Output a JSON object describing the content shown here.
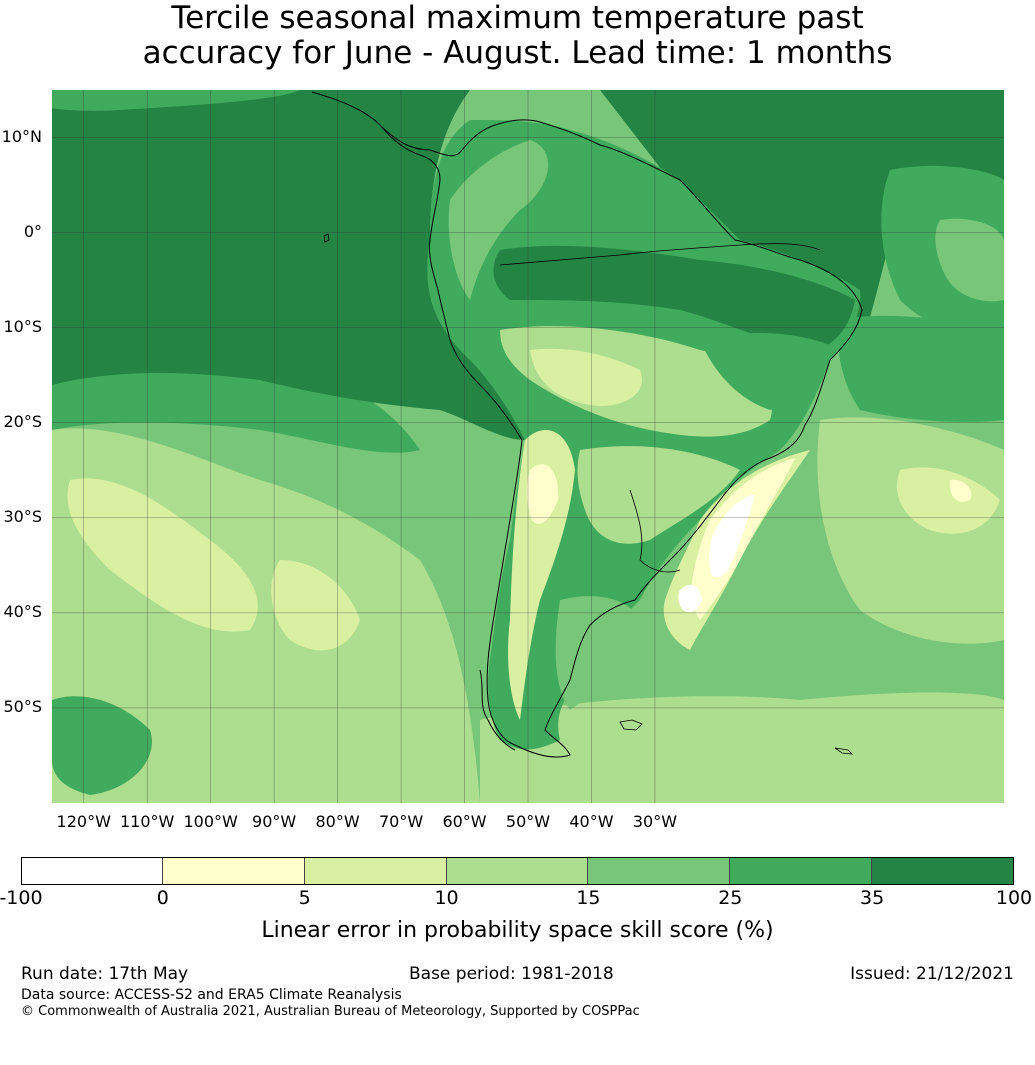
{
  "title": {
    "line1": "Tercile seasonal maximum temperature past",
    "line2": "accuracy for June - August. Lead time: 1 months"
  },
  "map": {
    "lon_range": [
      -125,
      25
    ],
    "lat_range": [
      -60,
      15
    ],
    "lat_labels": [
      "10°N",
      "0°",
      "10°S",
      "20°S",
      "30°S",
      "40°S",
      "50°S"
    ],
    "lat_values": [
      10,
      0,
      -10,
      -20,
      -30,
      -40,
      -50
    ],
    "lon_labels": [
      "120°W",
      "110°W",
      "100°W",
      "90°W",
      "80°W",
      "70°W",
      "60°W",
      "50°W",
      "40°W",
      "30°W"
    ],
    "lon_values": [
      -120,
      -110,
      -100,
      -90,
      -80,
      -70,
      -60,
      -50,
      -40,
      -30
    ],
    "colors": {
      "c0": "#ffffff",
      "c1": "#ffffcc",
      "c2": "#d9f0a3",
      "c3": "#addd8e",
      "c4": "#78c679",
      "c5": "#41ab5d",
      "c6": "#238443"
    }
  },
  "colorbar": {
    "bounds": [
      -100,
      0,
      5,
      10,
      15,
      25,
      35,
      100
    ],
    "tick_labels": [
      "-100",
      "0",
      "5",
      "10",
      "15",
      "25",
      "35",
      "100"
    ],
    "label": "Linear error in probability space skill score (%)"
  },
  "footer": {
    "run_date": "Run date: 17th May",
    "base_period": "Base period: 1981-2018",
    "issued": "Issued: 21/12/2021",
    "data_source": "Data source: ACCESS-S2 and ERA5 Climate Reanalysis",
    "copyright": "© Commonwealth of Australia 2021, Australian Bureau of Meteorology, Supported by COSPPac"
  }
}
